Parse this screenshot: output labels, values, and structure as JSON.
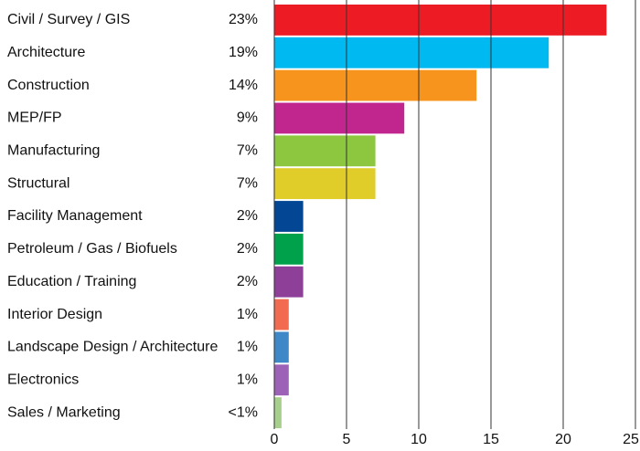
{
  "chart_data": {
    "type": "barh",
    "categories": [
      "Civil / Survey / GIS",
      "Architecture",
      "Construction",
      "MEP/FP",
      "Manufacturing",
      "Structural",
      "Facility Management",
      "Petroleum / Gas / Biofuels",
      "Education / Training",
      "Interior Design",
      "Landscape Design / Architecture",
      "Electronics",
      "Sales / Marketing"
    ],
    "values": [
      23,
      19,
      14,
      9,
      7,
      7,
      2,
      2,
      2,
      1,
      1,
      1,
      0.5
    ],
    "value_labels": [
      "23%",
      "19%",
      "14%",
      "9%",
      "7%",
      "7%",
      "2%",
      "2%",
      "2%",
      "1%",
      "1%",
      "1%",
      "<1%"
    ],
    "colors": [
      "#ed1c24",
      "#00b9f1",
      "#f7941d",
      "#c1268e",
      "#8dc63f",
      "#e0cd2a",
      "#034694",
      "#00a14b",
      "#8e3f98",
      "#f26b50",
      "#3f88c8",
      "#9b62b8",
      "#a7d08c"
    ],
    "xlim": [
      0,
      25
    ],
    "xticks": [
      0,
      5,
      10,
      15,
      20,
      25
    ],
    "grid": true
  }
}
